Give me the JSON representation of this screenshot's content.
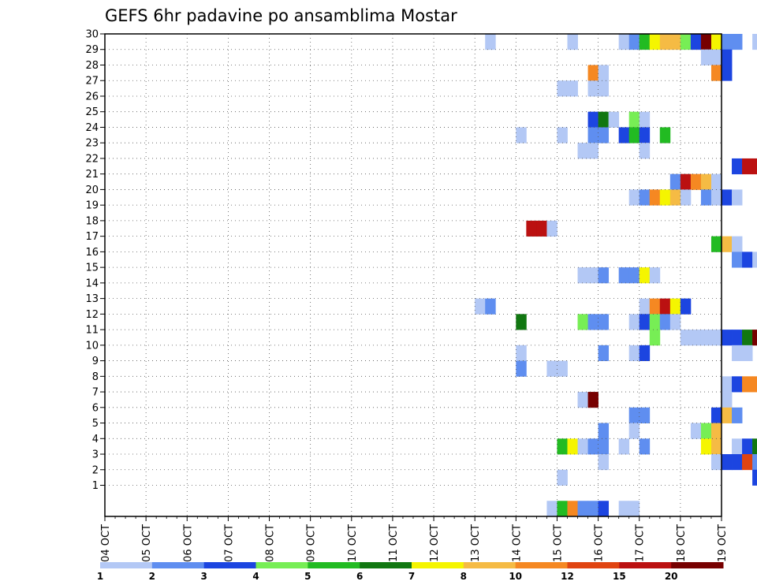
{
  "chart_data": {
    "type": "heatmap",
    "title": "GEFS 6hr padavine po ansamblima Mostar",
    "xlabel": "",
    "ylabel": "",
    "x_tick_labels": [
      "04 OCT",
      "05 OCT",
      "06 OCT",
      "07 OCT",
      "08 OCT",
      "09 OCT",
      "10 OCT",
      "11 OCT",
      "12 OCT",
      "13 OCT",
      "14 OCT",
      "15 OCT",
      "16 OCT",
      "17 OCT",
      "18 OCT",
      "19 OCT"
    ],
    "x_steps_per_day": 4,
    "y_tick_labels": [
      "1",
      "2",
      "3",
      "4",
      "5",
      "6",
      "7",
      "8",
      "9",
      "10",
      "11",
      "12",
      "13",
      "14",
      "15",
      "16",
      "17",
      "18",
      "19",
      "20",
      "21",
      "22",
      "23",
      "24",
      "25",
      "26",
      "27",
      "28",
      "29",
      "30"
    ],
    "y_range": [
      0,
      30
    ],
    "grid": true,
    "legend": {
      "placement": "bottom",
      "colors": [
        "#b3c8f5",
        "#5f8ef0",
        "#1c45e0",
        "#77ee55",
        "#22bb22",
        "#117711",
        "#f5f500",
        "#f5bb44",
        "#f58822",
        "#e04411",
        "#bb1111",
        "#770000"
      ],
      "labels": [
        "1",
        "2",
        "3",
        "4",
        "5",
        "6",
        "7",
        "8",
        "10",
        "12",
        "15",
        "20"
      ]
    },
    "cells": [
      {
        "m": 30,
        "t": [
          [
            37,
            1
          ],
          [
            45,
            1
          ],
          [
            50,
            1
          ],
          [
            51,
            2
          ],
          [
            52,
            5
          ],
          [
            53,
            7
          ],
          [
            54,
            8
          ],
          [
            55,
            8
          ],
          [
            56,
            4
          ],
          [
            57,
            3
          ],
          [
            58,
            12
          ],
          [
            59,
            7
          ],
          [
            60,
            2
          ],
          [
            61,
            2
          ],
          [
            63,
            1
          ],
          [
            71,
            1
          ]
        ]
      },
      {
        "m": 29,
        "t": [
          [
            58,
            1
          ],
          [
            59,
            1
          ],
          [
            60,
            3
          ],
          [
            69,
            1
          ],
          [
            70,
            1
          ],
          [
            78,
            1
          ],
          [
            79,
            1
          ]
        ]
      },
      {
        "m": 28,
        "t": [
          [
            47,
            9
          ],
          [
            48,
            1
          ],
          [
            59,
            9
          ],
          [
            60,
            3
          ],
          [
            66,
            3
          ]
        ]
      },
      {
        "m": 27,
        "t": [
          [
            44,
            1
          ],
          [
            45,
            1
          ],
          [
            47,
            1
          ],
          [
            48,
            1
          ],
          [
            72,
            2
          ]
        ]
      },
      {
        "m": 26,
        "t": [
          [
            67,
            1
          ],
          [
            73,
            9
          ],
          [
            74,
            12
          ],
          [
            75,
            11
          ],
          [
            76,
            2
          ]
        ]
      },
      {
        "m": 25,
        "t": [
          [
            47,
            3
          ],
          [
            48,
            6
          ],
          [
            49,
            1
          ],
          [
            51,
            4
          ],
          [
            52,
            1
          ],
          [
            72,
            3
          ]
        ]
      },
      {
        "m": 24,
        "t": [
          [
            40,
            1
          ],
          [
            44,
            1
          ],
          [
            47,
            2
          ],
          [
            48,
            2
          ],
          [
            50,
            3
          ],
          [
            51,
            5
          ],
          [
            52,
            3
          ],
          [
            54,
            5
          ]
        ]
      },
      {
        "m": 23,
        "t": [
          [
            46,
            1
          ],
          [
            47,
            1
          ],
          [
            52,
            1
          ]
        ]
      },
      {
        "m": 22,
        "t": [
          [
            61,
            3
          ],
          [
            62,
            11
          ],
          [
            63,
            11
          ],
          [
            65,
            9
          ],
          [
            66,
            9
          ],
          [
            70,
            3
          ],
          [
            71,
            9
          ],
          [
            72,
            11
          ],
          [
            73,
            9
          ],
          [
            74,
            1
          ]
        ]
      },
      {
        "m": 21,
        "t": [
          [
            55,
            2
          ],
          [
            56,
            11
          ],
          [
            57,
            9
          ],
          [
            58,
            8
          ],
          [
            59,
            1
          ]
        ]
      },
      {
        "m": 20,
        "t": [
          [
            51,
            1
          ],
          [
            52,
            2
          ],
          [
            53,
            9
          ],
          [
            54,
            7
          ],
          [
            55,
            8
          ],
          [
            56,
            1
          ],
          [
            58,
            2
          ],
          [
            59,
            1
          ],
          [
            60,
            3
          ],
          [
            61,
            1
          ],
          [
            69,
            8
          ],
          [
            70,
            9
          ],
          [
            71,
            9
          ],
          [
            72,
            2
          ],
          [
            73,
            8
          ],
          [
            74,
            9
          ]
        ]
      },
      {
        "m": 19,
        "t": [
          [
            74,
            1
          ]
        ]
      },
      {
        "m": 18,
        "t": [
          [
            41,
            11
          ],
          [
            42,
            11
          ],
          [
            43,
            1
          ]
        ]
      },
      {
        "m": 17,
        "t": [
          [
            59,
            5
          ],
          [
            60,
            8
          ],
          [
            61,
            1
          ],
          [
            72,
            1
          ],
          [
            74,
            1
          ],
          [
            75,
            9
          ],
          [
            76,
            7
          ],
          [
            77,
            9
          ],
          [
            78,
            1
          ]
        ]
      },
      {
        "m": 16,
        "t": [
          [
            61,
            2
          ],
          [
            62,
            3
          ],
          [
            63,
            1
          ],
          [
            64,
            12
          ],
          [
            65,
            3
          ],
          [
            70,
            4
          ]
        ]
      },
      {
        "m": 15,
        "t": [
          [
            46,
            1
          ],
          [
            47,
            1
          ],
          [
            48,
            2
          ],
          [
            50,
            2
          ],
          [
            51,
            2
          ],
          [
            52,
            7
          ],
          [
            53,
            1
          ]
        ]
      },
      {
        "m": 14,
        "t": [
          [
            73,
            2
          ],
          [
            74,
            3
          ]
        ]
      },
      {
        "m": 13,
        "t": [
          [
            36,
            1
          ],
          [
            37,
            2
          ],
          [
            52,
            1
          ],
          [
            53,
            9
          ],
          [
            54,
            11
          ],
          [
            55,
            7
          ],
          [
            56,
            3
          ],
          [
            73,
            1
          ],
          [
            74,
            2
          ],
          [
            75,
            3
          ],
          [
            76,
            5
          ]
        ]
      },
      {
        "m": 12,
        "t": [
          [
            40,
            6
          ],
          [
            46,
            4
          ],
          [
            47,
            2
          ],
          [
            48,
            2
          ],
          [
            51,
            1
          ],
          [
            52,
            3
          ],
          [
            53,
            4
          ],
          [
            54,
            2
          ],
          [
            55,
            1
          ],
          [
            73,
            12
          ],
          [
            74,
            1
          ]
        ]
      },
      {
        "m": 11,
        "t": [
          [
            53,
            4
          ],
          [
            56,
            1
          ],
          [
            57,
            1
          ],
          [
            58,
            1
          ],
          [
            59,
            1
          ],
          [
            60,
            3
          ],
          [
            61,
            3
          ],
          [
            62,
            6
          ],
          [
            63,
            12
          ],
          [
            64,
            12
          ],
          [
            65,
            10
          ],
          [
            72,
            12
          ],
          [
            73,
            1
          ],
          [
            74,
            6
          ]
        ]
      },
      {
        "m": 10,
        "t": [
          [
            40,
            1
          ],
          [
            48,
            2
          ],
          [
            51,
            1
          ],
          [
            52,
            3
          ],
          [
            61,
            1
          ],
          [
            62,
            1
          ],
          [
            69,
            2
          ],
          [
            70,
            5
          ],
          [
            71,
            9
          ],
          [
            72,
            1
          ]
        ]
      },
      {
        "m": 9,
        "t": [
          [
            40,
            2
          ],
          [
            43,
            1
          ],
          [
            44,
            1
          ]
        ]
      },
      {
        "m": 8,
        "t": [
          [
            60,
            1
          ],
          [
            61,
            3
          ],
          [
            62,
            9
          ],
          [
            63,
            9
          ],
          [
            64,
            3
          ],
          [
            65,
            1
          ]
        ]
      },
      {
        "m": 7,
        "t": [
          [
            46,
            1
          ],
          [
            47,
            12
          ],
          [
            60,
            1
          ],
          [
            65,
            1
          ],
          [
            66,
            1
          ],
          [
            67,
            1
          ],
          [
            68,
            1
          ],
          [
            72,
            11
          ],
          [
            73,
            12
          ],
          [
            74,
            11
          ],
          [
            75,
            1
          ]
        ]
      },
      {
        "m": 6,
        "t": [
          [
            51,
            2
          ],
          [
            52,
            2
          ],
          [
            59,
            3
          ],
          [
            60,
            8
          ],
          [
            61,
            2
          ],
          [
            69,
            2
          ]
        ]
      },
      {
        "m": 5,
        "t": [
          [
            48,
            2
          ],
          [
            51,
            1
          ],
          [
            57,
            1
          ],
          [
            58,
            4
          ],
          [
            59,
            8
          ],
          [
            75,
            1
          ]
        ]
      },
      {
        "m": 4,
        "t": [
          [
            44,
            5
          ],
          [
            45,
            7
          ],
          [
            46,
            1
          ],
          [
            47,
            2
          ],
          [
            48,
            2
          ],
          [
            50,
            1
          ],
          [
            52,
            2
          ],
          [
            58,
            7
          ],
          [
            59,
            8
          ],
          [
            61,
            1
          ],
          [
            62,
            3
          ],
          [
            63,
            6
          ],
          [
            64,
            11
          ],
          [
            65,
            5
          ],
          [
            66,
            5
          ],
          [
            67,
            4
          ],
          [
            68,
            9
          ],
          [
            69,
            10
          ],
          [
            75,
            3
          ],
          [
            76,
            8
          ]
        ]
      },
      {
        "m": 3,
        "t": [
          [
            48,
            1
          ],
          [
            59,
            1
          ],
          [
            60,
            3
          ],
          [
            61,
            3
          ],
          [
            62,
            10
          ],
          [
            63,
            2
          ],
          [
            66,
            1
          ],
          [
            67,
            5
          ],
          [
            68,
            1
          ],
          [
            71,
            2
          ],
          [
            72,
            3
          ]
        ]
      },
      {
        "m": 2,
        "t": [
          [
            44,
            1
          ],
          [
            63,
            3
          ],
          [
            69,
            2
          ],
          [
            75,
            6
          ]
        ]
      },
      {
        "m": 1,
        "t": [
          [
            68,
            1
          ]
        ]
      },
      {
        "m": 0,
        "t": [
          [
            43,
            1
          ],
          [
            44,
            5
          ],
          [
            45,
            9
          ],
          [
            46,
            2
          ],
          [
            47,
            2
          ],
          [
            48,
            3
          ],
          [
            50,
            1
          ],
          [
            51,
            1
          ],
          [
            66,
            1
          ],
          [
            67,
            3
          ],
          [
            68,
            3
          ],
          [
            69,
            12
          ]
        ]
      }
    ]
  }
}
